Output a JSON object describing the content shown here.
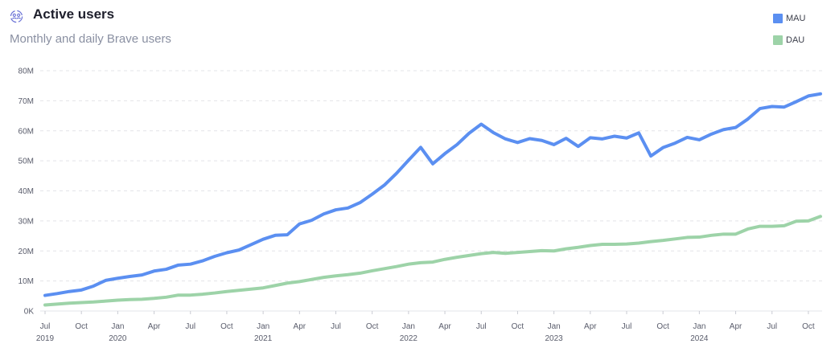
{
  "header": {
    "title": "Active users",
    "subtitle": "Monthly and daily Brave users",
    "icon": "users-cycle-icon"
  },
  "colors": {
    "mau": "#5b8ff1",
    "dau": "#9dd3a8",
    "grid": "#e3e4e8",
    "title": "#1e1f2c",
    "subtitle": "#8a90a2",
    "icon": "#6b73d6"
  },
  "chart_data": {
    "type": "line",
    "title": "Active users",
    "subtitle": "Monthly and daily Brave users",
    "xlabel": "",
    "ylabel": "",
    "ylim": [
      0,
      80
    ],
    "yunit": "M",
    "yticks": [
      "0K",
      "10M",
      "20M",
      "30M",
      "40M",
      "50M",
      "60M",
      "70M",
      "80M"
    ],
    "ytick_values": [
      0,
      10,
      20,
      30,
      40,
      50,
      60,
      70,
      80
    ],
    "x_start": "2019-07",
    "x_end": "2024-11",
    "xticks": [
      {
        "month": "Jul",
        "year": "2019"
      },
      {
        "month": "Oct",
        "year": ""
      },
      {
        "month": "Jan",
        "year": "2020"
      },
      {
        "month": "Apr",
        "year": ""
      },
      {
        "month": "Jul",
        "year": ""
      },
      {
        "month": "Oct",
        "year": ""
      },
      {
        "month": "Jan",
        "year": "2021"
      },
      {
        "month": "Apr",
        "year": ""
      },
      {
        "month": "Jul",
        "year": ""
      },
      {
        "month": "Oct",
        "year": ""
      },
      {
        "month": "Jan",
        "year": "2022"
      },
      {
        "month": "Apr",
        "year": ""
      },
      {
        "month": "Jul",
        "year": ""
      },
      {
        "month": "Oct",
        "year": ""
      },
      {
        "month": "Jan",
        "year": "2023"
      },
      {
        "month": "Apr",
        "year": ""
      },
      {
        "month": "Jul",
        "year": ""
      },
      {
        "month": "Oct",
        "year": ""
      },
      {
        "month": "Jan",
        "year": "2024"
      },
      {
        "month": "Apr",
        "year": ""
      },
      {
        "month": "Jul",
        "year": ""
      },
      {
        "month": "Oct",
        "year": ""
      }
    ],
    "grid": true,
    "legend_position": "top-right",
    "x": [
      "2019-07",
      "2019-08",
      "2019-09",
      "2019-10",
      "2019-11",
      "2019-12",
      "2020-01",
      "2020-02",
      "2020-03",
      "2020-04",
      "2020-05",
      "2020-06",
      "2020-07",
      "2020-08",
      "2020-09",
      "2020-10",
      "2020-11",
      "2020-12",
      "2021-01",
      "2021-02",
      "2021-03",
      "2021-04",
      "2021-05",
      "2021-06",
      "2021-07",
      "2021-08",
      "2021-09",
      "2021-10",
      "2021-11",
      "2021-12",
      "2022-01",
      "2022-02",
      "2022-03",
      "2022-04",
      "2022-05",
      "2022-06",
      "2022-07",
      "2022-08",
      "2022-09",
      "2022-10",
      "2022-11",
      "2022-12",
      "2023-01",
      "2023-02",
      "2023-03",
      "2023-04",
      "2023-05",
      "2023-06",
      "2023-07",
      "2023-08",
      "2023-09",
      "2023-10",
      "2023-11",
      "2023-12",
      "2024-01",
      "2024-02",
      "2024-03",
      "2024-04",
      "2024-05",
      "2024-06",
      "2024-07",
      "2024-08",
      "2024-09",
      "2024-10",
      "2024-11"
    ],
    "series": [
      {
        "name": "MAU",
        "color": "#5b8ff1",
        "values": [
          5.2,
          5.8,
          6.5,
          7.0,
          8.3,
          10.2,
          10.9,
          11.5,
          12.0,
          13.3,
          13.9,
          15.3,
          15.6,
          16.7,
          18.2,
          19.4,
          20.3,
          22.1,
          23.9,
          25.2,
          25.4,
          29.0,
          30.2,
          32.3,
          33.7,
          34.3,
          36.1,
          38.9,
          41.9,
          45.8,
          50.2,
          54.5,
          49.0,
          52.4,
          55.4,
          59.2,
          62.2,
          59.4,
          57.3,
          56.1,
          57.4,
          56.8,
          55.4,
          57.5,
          54.8,
          57.7,
          57.3,
          58.2,
          57.6,
          59.3,
          51.6,
          54.4,
          55.9,
          57.8,
          57.0,
          58.9,
          60.4,
          61.1,
          63.9,
          67.4,
          68.1,
          67.9,
          69.7,
          71.6,
          72.3
        ]
      },
      {
        "name": "DAU",
        "color": "#9dd3a8",
        "values": [
          2.0,
          2.3,
          2.6,
          2.8,
          3.0,
          3.3,
          3.6,
          3.8,
          3.9,
          4.2,
          4.6,
          5.3,
          5.3,
          5.6,
          6.0,
          6.5,
          6.9,
          7.3,
          7.7,
          8.5,
          9.3,
          9.8,
          10.5,
          11.2,
          11.7,
          12.1,
          12.6,
          13.4,
          14.1,
          14.8,
          15.6,
          16.1,
          16.3,
          17.2,
          17.9,
          18.5,
          19.1,
          19.5,
          19.2,
          19.5,
          19.8,
          20.1,
          20.0,
          20.7,
          21.2,
          21.8,
          22.2,
          22.2,
          22.3,
          22.6,
          23.1,
          23.5,
          24.0,
          24.5,
          24.6,
          25.2,
          25.6,
          25.6,
          27.3,
          28.2,
          28.2,
          28.4,
          29.9,
          30.0,
          31.5
        ]
      }
    ]
  }
}
